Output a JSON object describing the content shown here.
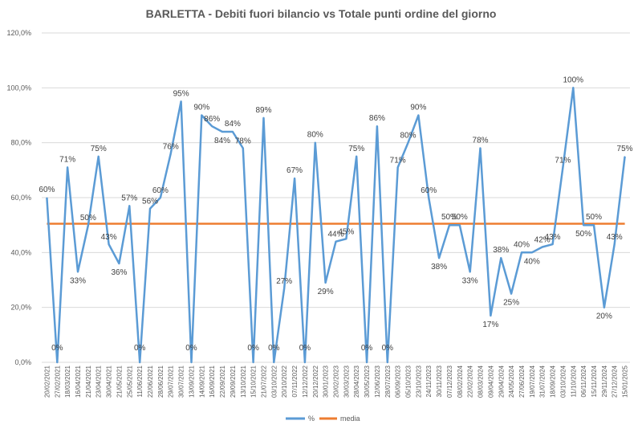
{
  "chart_data": {
    "type": "line",
    "title": "BARLETTA - Debiti fuori bilancio vs Totale punti ordine del giorno",
    "xlabel": "",
    "ylabel": "",
    "ylim": [
      0,
      120
    ],
    "yticks": [
      "0,0%",
      "20,0%",
      "40,0%",
      "60,0%",
      "80,0%",
      "100,0%",
      "120,0%"
    ],
    "grid": true,
    "legend_position": "bottom",
    "categories": [
      "20/02/2021",
      "27/02/2021",
      "18/03/2021",
      "16/04/2021",
      "21/04/2021",
      "23/04/2021",
      "30/04/2021",
      "21/05/2021",
      "25/05/2021",
      "11/06/2021",
      "22/06/2021",
      "28/06/2021",
      "29/07/2021",
      "30/07/2021",
      "13/09/2021",
      "14/09/2021",
      "16/09/2021",
      "22/09/2021",
      "29/09/2021",
      "13/10/2021",
      "15/10/2021",
      "21/07/2022",
      "03/10/2022",
      "20/10/2022",
      "07/11/2022",
      "12/12/2022",
      "20/12/2022",
      "30/01/2023",
      "20/02/2023",
      "30/03/2023",
      "28/04/2023",
      "30/05/2023",
      "12/06/2023",
      "28/07/2023",
      "06/09/2023",
      "05/10/2023",
      "23/10/2023",
      "24/11/2023",
      "30/11/2023",
      "07/12/2023",
      "08/02/2024",
      "22/02/2024",
      "08/03/2024",
      "09/04/2024",
      "29/04/2024",
      "24/05/2024",
      "27/06/2024",
      "19/07/2024",
      "31/07/2024",
      "18/09/2024",
      "03/10/2024",
      "11/10/2024",
      "06/11/2024",
      "15/11/2024",
      "29/11/2024",
      "27/12/2024",
      "15/01/2025"
    ],
    "series": [
      {
        "name": "%",
        "color": "#5b9bd5",
        "values": [
          60,
          0,
          71,
          33,
          50,
          75,
          43,
          36,
          57,
          0,
          56,
          60,
          76,
          95,
          0,
          90,
          86,
          84,
          84,
          78,
          0,
          89,
          0,
          27,
          67,
          0,
          80,
          29,
          44,
          45,
          75,
          0,
          86,
          0,
          71,
          80,
          90,
          60,
          38,
          50,
          50,
          33,
          78,
          17,
          38,
          25,
          40,
          40,
          42,
          43,
          71,
          100,
          50,
          50,
          20,
          43,
          75
        ],
        "labels": [
          "60%",
          "0%",
          "71%",
          "33%",
          "50%",
          "75%",
          "43%",
          "36%",
          "57%",
          "0%",
          "56%",
          "60%",
          "76%",
          "95%",
          "0%",
          "90%",
          "86%",
          "84%",
          "84%",
          "78%",
          "0%",
          "89%",
          "0%",
          "27%",
          "67%",
          "0%",
          "80%",
          "29%",
          "44%",
          "45%",
          "75%",
          "0%",
          "86%",
          "0%",
          "71%",
          "80%",
          "90%",
          "60%",
          "38%",
          "50%",
          "50%",
          "33%",
          "78%",
          "17%",
          "38%",
          "25%",
          "40%",
          "40%",
          "42%",
          "43%",
          "71%",
          "100%",
          "50%",
          "50%",
          "20%",
          "43%",
          "75%"
        ]
      },
      {
        "name": "media",
        "color": "#ed7d31",
        "values": [
          50.5,
          50.5,
          50.5,
          50.5,
          50.5,
          50.5,
          50.5,
          50.5,
          50.5,
          50.5,
          50.5,
          50.5,
          50.5,
          50.5,
          50.5,
          50.5,
          50.5,
          50.5,
          50.5,
          50.5,
          50.5,
          50.5,
          50.5,
          50.5,
          50.5,
          50.5,
          50.5,
          50.5,
          50.5,
          50.5,
          50.5,
          50.5,
          50.5,
          50.5,
          50.5,
          50.5,
          50.5,
          50.5,
          50.5,
          50.5,
          50.5,
          50.5,
          50.5,
          50.5,
          50.5,
          50.5,
          50.5,
          50.5,
          50.5,
          50.5,
          50.5,
          50.5,
          50.5,
          50.5,
          50.5,
          50.5,
          50.5
        ]
      }
    ]
  }
}
